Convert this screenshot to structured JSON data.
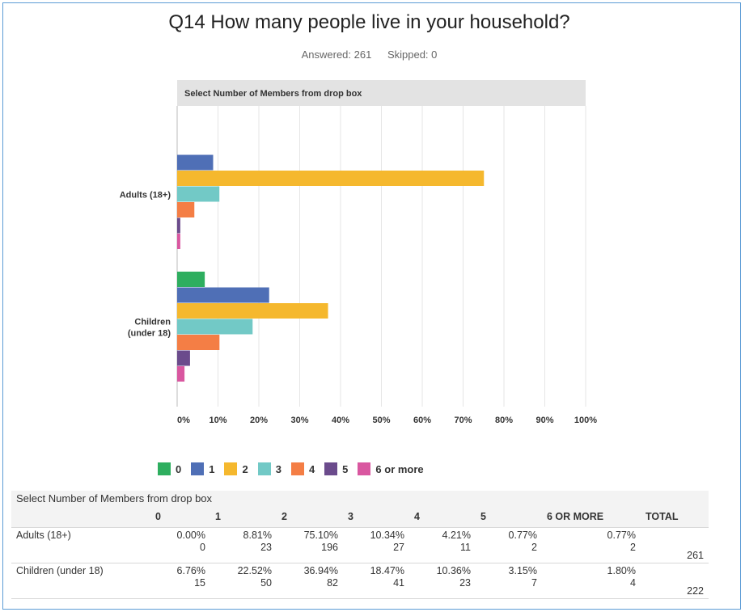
{
  "header": {
    "title": "Q14 How many people live in your household?",
    "answered": "Answered: 261",
    "skipped": "Skipped: 0"
  },
  "chart_data": {
    "type": "bar",
    "orientation": "horizontal",
    "title": "Select Number of Members from drop box",
    "categories": [
      "Adults (18+)",
      "Children (under 18)"
    ],
    "category_lines": [
      [
        "Adults (18+)"
      ],
      [
        "Children",
        "(under 18)"
      ]
    ],
    "series": [
      {
        "name": "0",
        "color": "#2eae5f",
        "values": [
          0.0,
          6.76
        ]
      },
      {
        "name": "1",
        "color": "#4f6fb6",
        "values": [
          8.81,
          22.52
        ]
      },
      {
        "name": "2",
        "color": "#f5b82e",
        "values": [
          75.1,
          36.94
        ]
      },
      {
        "name": "3",
        "color": "#72c9c6",
        "values": [
          10.34,
          18.47
        ]
      },
      {
        "name": "4",
        "color": "#f47e45",
        "values": [
          4.21,
          10.36
        ]
      },
      {
        "name": "5",
        "color": "#6b4b8c",
        "values": [
          0.77,
          3.15
        ]
      },
      {
        "name": "6 or more",
        "color": "#d957a0",
        "values": [
          0.77,
          1.8
        ]
      }
    ],
    "xlim": [
      0,
      100
    ],
    "xticks": [
      "0%",
      "10%",
      "20%",
      "30%",
      "40%",
      "50%",
      "60%",
      "70%",
      "80%",
      "90%",
      "100%"
    ],
    "grid": true,
    "legend": "bottom"
  },
  "table": {
    "caption": "Select Number of Members from drop box",
    "headers": [
      "",
      "0",
      "1",
      "2",
      "3",
      "4",
      "5",
      "6 OR MORE",
      "TOTAL"
    ],
    "rows": [
      {
        "label": "Adults (18+)",
        "percents": [
          "0.00%",
          "8.81%",
          "75.10%",
          "10.34%",
          "4.21%",
          "0.77%",
          "0.77%"
        ],
        "counts": [
          "0",
          "23",
          "196",
          "27",
          "11",
          "2",
          "2"
        ],
        "total": "261"
      },
      {
        "label": "Children (under 18)",
        "percents": [
          "6.76%",
          "22.52%",
          "36.94%",
          "18.47%",
          "10.36%",
          "3.15%",
          "1.80%"
        ],
        "counts": [
          "15",
          "50",
          "82",
          "41",
          "23",
          "7",
          "4"
        ],
        "total": "222"
      }
    ]
  }
}
